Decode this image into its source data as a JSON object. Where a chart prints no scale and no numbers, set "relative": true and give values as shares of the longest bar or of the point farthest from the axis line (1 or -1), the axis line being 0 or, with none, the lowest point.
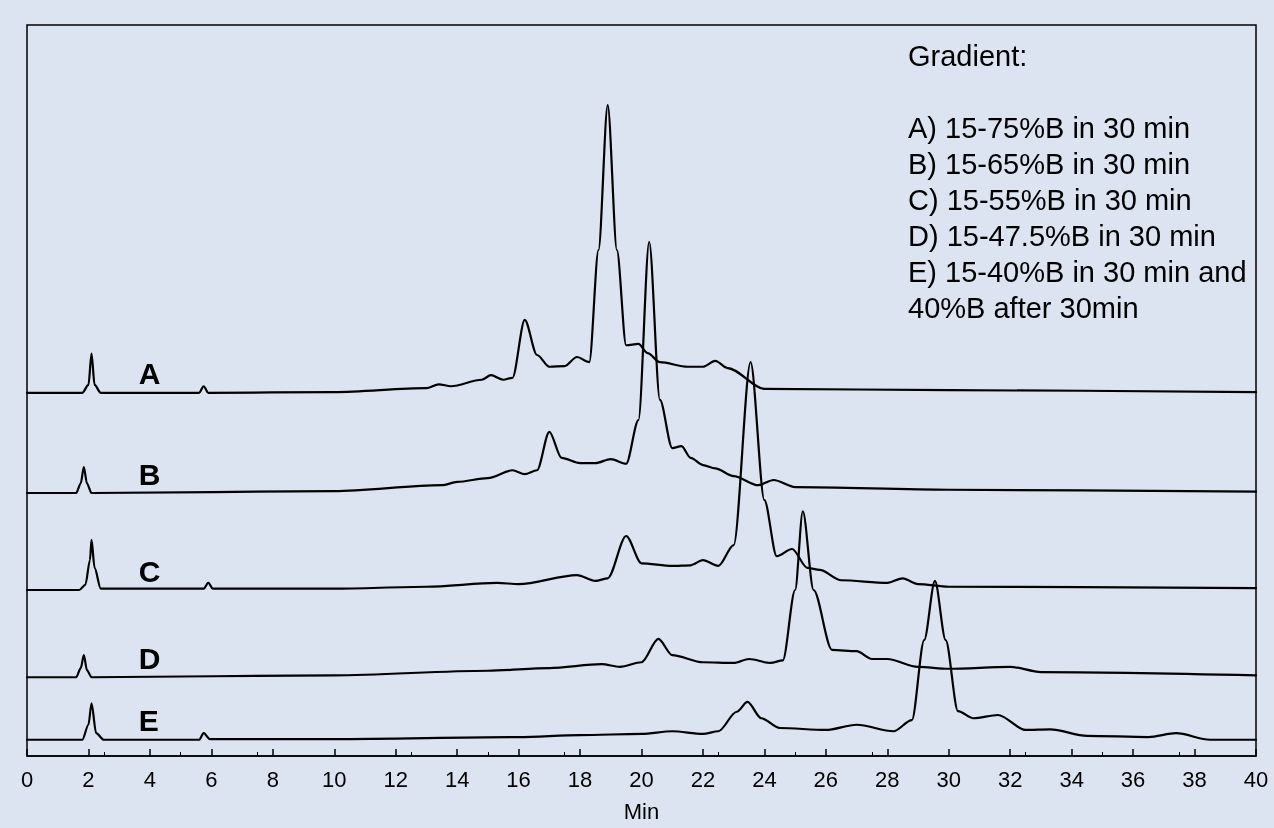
{
  "chart_data": {
    "type": "line",
    "relative": true,
    "xlabel": "Min",
    "xlim": [
      0,
      40
    ],
    "xticks": [
      0,
      2,
      4,
      6,
      8,
      10,
      12,
      14,
      16,
      18,
      20,
      22,
      24,
      26,
      28,
      30,
      32,
      34,
      36,
      38,
      40
    ],
    "grid": false,
    "legend": false,
    "marker": "none",
    "line_style": "solid",
    "annotations": [
      "Gradient:",
      "A) 15-75%B in 30 min",
      "B) 15-65%B in 30 min",
      "C) 15-55%B in 30 min",
      "D) 15-47.5%B in 30 min",
      "E) 15-40%B in 30 min and 40%B after 30min"
    ],
    "series": [
      {
        "name": "A",
        "color": "#000000",
        "x": [
          0,
          1.8,
          2.0,
          2.1,
          2.2,
          2.4,
          5.6,
          5.75,
          5.9,
          10,
          13,
          13.4,
          13.8,
          14.8,
          15.1,
          15.5,
          15.8,
          16.2,
          16.6,
          17,
          17.5,
          17.9,
          18.3,
          18.6,
          18.9,
          19.2,
          19.5,
          19.9,
          20.2,
          20.6,
          21.5,
          22.0,
          22.4,
          22.8,
          24,
          30,
          40
        ],
        "values": [
          0.558,
          0.558,
          0.57,
          0.618,
          0.57,
          0.558,
          0.558,
          0.568,
          0.558,
          0.559,
          0.565,
          0.571,
          0.568,
          0.578,
          0.585,
          0.578,
          0.581,
          0.67,
          0.616,
          0.598,
          0.599,
          0.613,
          0.605,
          0.777,
          1.0,
          0.777,
          0.631,
          0.633,
          0.619,
          0.605,
          0.598,
          0.598,
          0.607,
          0.596,
          0.564,
          0.562,
          0.559
        ]
      },
      {
        "name": "B",
        "color": "#000000",
        "x": [
          0,
          1.6,
          1.75,
          1.85,
          1.95,
          2.1,
          10,
          13.5,
          14,
          15,
          15.8,
          16.2,
          16.6,
          17.0,
          17.4,
          18,
          18.5,
          19.0,
          19.5,
          19.9,
          20.25,
          20.6,
          21.0,
          21.3,
          21.6,
          22,
          22.4,
          23,
          23.8,
          24.3,
          25,
          30,
          40
        ],
        "values": [
          0.404,
          0.404,
          0.419,
          0.444,
          0.419,
          0.404,
          0.407,
          0.416,
          0.421,
          0.427,
          0.439,
          0.433,
          0.439,
          0.498,
          0.458,
          0.45,
          0.45,
          0.456,
          0.449,
          0.516,
          0.79,
          0.547,
          0.473,
          0.476,
          0.458,
          0.447,
          0.442,
          0.43,
          0.416,
          0.424,
          0.413,
          0.409,
          0.406
        ]
      },
      {
        "name": "C",
        "color": "#000000",
        "x": [
          0,
          1.7,
          1.9,
          2.05,
          2.1,
          2.2,
          2.4,
          5.75,
          5.9,
          6.05,
          10,
          13,
          15.3,
          16,
          17.9,
          18.5,
          18.9,
          19.5,
          20.0,
          21,
          21.6,
          22.0,
          22.5,
          23.0,
          23.55,
          24.0,
          24.4,
          24.9,
          25.4,
          25.8,
          26.5,
          28,
          28.5,
          29,
          30,
          40
        ],
        "values": [
          0.255,
          0.255,
          0.263,
          0.301,
          0.332,
          0.289,
          0.257,
          0.257,
          0.266,
          0.257,
          0.257,
          0.26,
          0.266,
          0.264,
          0.278,
          0.269,
          0.273,
          0.338,
          0.296,
          0.292,
          0.293,
          0.301,
          0.292,
          0.324,
          0.605,
          0.393,
          0.307,
          0.318,
          0.289,
          0.286,
          0.27,
          0.266,
          0.273,
          0.264,
          0.26,
          0.258
        ]
      },
      {
        "name": "D",
        "color": "#000000",
        "x": [
          0,
          1.6,
          1.75,
          1.85,
          1.95,
          2.1,
          10,
          15,
          17,
          18.7,
          19.3,
          20.0,
          20.55,
          21,
          22,
          23.0,
          23.5,
          24.2,
          24.6,
          25.0,
          25.25,
          25.6,
          26.2,
          27.0,
          27.5,
          28,
          29,
          30,
          32,
          33,
          40
        ],
        "values": [
          0.121,
          0.121,
          0.135,
          0.155,
          0.132,
          0.121,
          0.124,
          0.131,
          0.135,
          0.141,
          0.137,
          0.144,
          0.18,
          0.155,
          0.144,
          0.143,
          0.149,
          0.143,
          0.147,
          0.255,
          0.376,
          0.255,
          0.163,
          0.161,
          0.149,
          0.149,
          0.137,
          0.134,
          0.137,
          0.129,
          0.124
        ]
      },
      {
        "name": "E",
        "color": "#000000",
        "x": [
          0,
          1.8,
          2.0,
          2.1,
          2.25,
          2.5,
          5.6,
          5.75,
          5.95,
          10,
          16,
          18,
          20,
          21,
          22,
          22.5,
          23.1,
          23.45,
          23.9,
          24.5,
          26,
          27,
          28.2,
          28.8,
          29.2,
          29.55,
          29.9,
          30.3,
          30.8,
          31.6,
          32.5,
          33.3,
          34.5,
          36.5,
          37.4,
          38.5,
          40
        ],
        "values": [
          0.025,
          0.025,
          0.048,
          0.081,
          0.035,
          0.025,
          0.025,
          0.035,
          0.026,
          0.026,
          0.029,
          0.032,
          0.034,
          0.038,
          0.034,
          0.038,
          0.068,
          0.083,
          0.058,
          0.043,
          0.04,
          0.048,
          0.038,
          0.055,
          0.178,
          0.269,
          0.178,
          0.069,
          0.058,
          0.063,
          0.04,
          0.041,
          0.031,
          0.029,
          0.035,
          0.025,
          0.025
        ]
      }
    ]
  }
}
